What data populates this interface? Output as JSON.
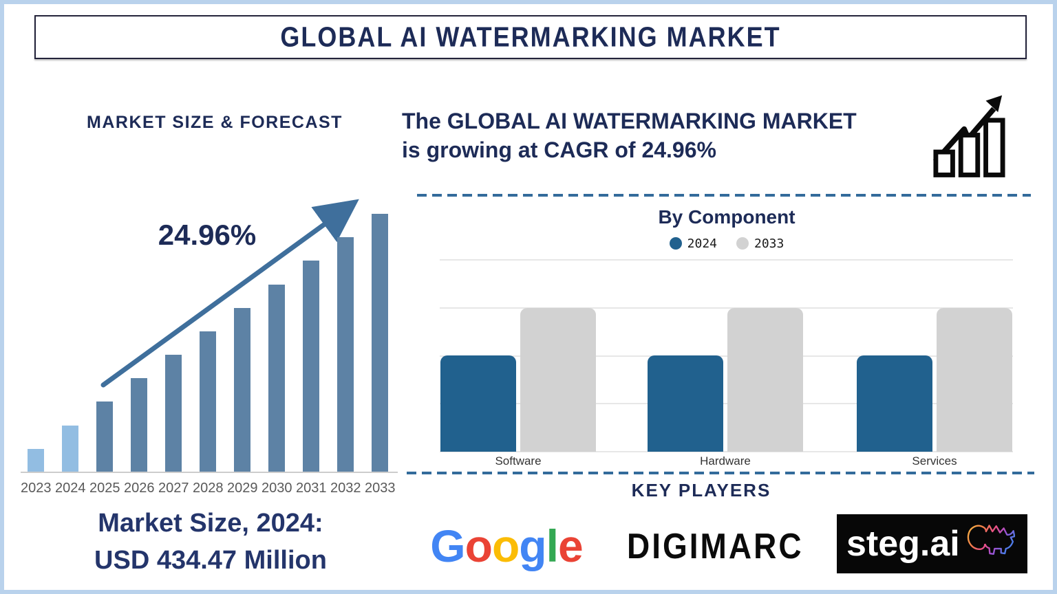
{
  "header": {
    "title": "GLOBAL AI WATERMARKING MARKET"
  },
  "left_panel": {
    "section_title": "MARKET SIZE & FORECAST",
    "cagr_label": "24.96%",
    "market_size_line1": "Market Size, 2024:",
    "market_size_line2": "USD 434.47 Million"
  },
  "right_panel": {
    "headline_line1": "The GLOBAL AI WATERMARKING MARKET",
    "headline_line2": "is growing at CAGR of 24.96%",
    "by_component_title": "By Component",
    "key_players_title": "KEY PLAYERS"
  },
  "chart_data": [
    {
      "type": "bar",
      "title": "MARKET SIZE & FORECAST",
      "categories": [
        "2023",
        "2024",
        "2025",
        "2026",
        "2027",
        "2028",
        "2029",
        "2030",
        "2031",
        "2032",
        "2033"
      ],
      "values_relative_height": [
        33,
        67,
        102,
        136,
        170,
        204,
        238,
        272,
        307,
        341,
        375
      ],
      "highlight_years": [
        "2023",
        "2024"
      ],
      "annotation": "24.96%",
      "known_point": {
        "year": "2024",
        "market_size": "USD 434.47 Million"
      },
      "cagr_percent": 24.96,
      "bar_color": "#5d82a5",
      "highlight_color": "#92bde2",
      "axis_line_color": "#cccccc",
      "grid": false,
      "ylabel": ""
    },
    {
      "type": "bar",
      "title": "By Component",
      "categories": [
        "Software",
        "Hardware",
        "Services"
      ],
      "series": [
        {
          "name": "2024",
          "values": [
            2,
            2,
            2
          ],
          "color": "#21618e"
        },
        {
          "name": "2033",
          "values": [
            3,
            3,
            3
          ],
          "color": "#d2d2d2"
        }
      ],
      "ylim": [
        0,
        4
      ],
      "grid": true,
      "legend_position": "top",
      "note": "no numeric axis labels shown; values are relative gridline units"
    }
  ],
  "key_players": [
    {
      "name": "Google",
      "letters": [
        {
          "ch": "G",
          "color": "#4285F4"
        },
        {
          "ch": "o",
          "color": "#EA4335"
        },
        {
          "ch": "o",
          "color": "#FBBC05"
        },
        {
          "ch": "g",
          "color": "#4285F4"
        },
        {
          "ch": "l",
          "color": "#34A853"
        },
        {
          "ch": "e",
          "color": "#EA4335"
        }
      ]
    },
    {
      "name": "DIGIMARC"
    },
    {
      "name": "steg.ai"
    }
  ],
  "colors": {
    "navy_text": "#1d2b57",
    "frame": "#b9d2ec",
    "dashed_divider": "#336b9b",
    "growth_arrow": "#3f6f9c",
    "trend_icon": "#0a0a0a",
    "component_blue": "#21618e",
    "component_gray": "#d2d2d2"
  }
}
